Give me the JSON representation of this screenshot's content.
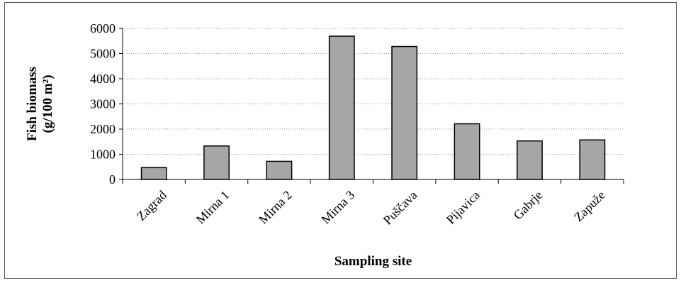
{
  "chart_data": {
    "type": "bar",
    "categories": [
      "Zagrad",
      "Mirna 1",
      "Mirna 2",
      "Mirna 3",
      "Puščava",
      "Pijavica",
      "Gabrje",
      "Zapuže"
    ],
    "values": [
      470,
      1330,
      720,
      5690,
      5280,
      2210,
      1530,
      1570
    ],
    "xlabel": "Sampling site",
    "ylabel_lines": [
      "Fish biomass",
      "(g/100 m²)"
    ],
    "ylim": [
      0,
      6000
    ],
    "yticks": [
      "0",
      "1000",
      "2000",
      "3000",
      "4000",
      "5000",
      "6000"
    ],
    "grid": true,
    "legend": "none",
    "bar_color": "#a6a6a6",
    "bar_edge_color": "#000000",
    "grid_color": "#9a9a9a"
  }
}
